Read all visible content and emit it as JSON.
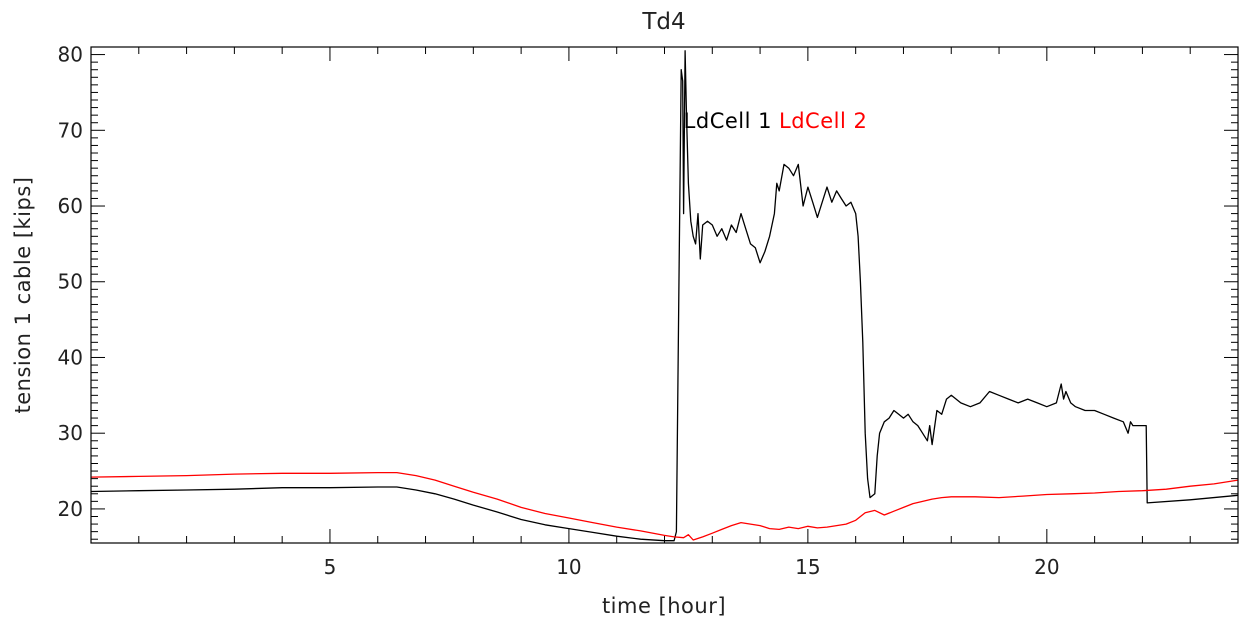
{
  "chart_data": {
    "type": "line",
    "title": "Td4",
    "xlabel": "time [hour]",
    "ylabel": "tension 1 cable [kips]",
    "xlim": [
      0,
      24
    ],
    "ylim": [
      15.5,
      81
    ],
    "xticks": [
      5,
      10,
      15,
      20
    ],
    "yticks": [
      20,
      30,
      40,
      50,
      60,
      70,
      80
    ],
    "grid": false,
    "legend_position": "top-center",
    "series": [
      {
        "name": "LdCell 1",
        "color": "#000000",
        "points": [
          [
            0.0,
            22.3
          ],
          [
            1.0,
            22.4
          ],
          [
            2.0,
            22.5
          ],
          [
            3.0,
            22.6
          ],
          [
            4.0,
            22.8
          ],
          [
            5.0,
            22.8
          ],
          [
            6.0,
            22.9
          ],
          [
            6.4,
            22.9
          ],
          [
            6.8,
            22.5
          ],
          [
            7.2,
            22.0
          ],
          [
            7.6,
            21.3
          ],
          [
            8.0,
            20.5
          ],
          [
            8.5,
            19.6
          ],
          [
            9.0,
            18.6
          ],
          [
            9.5,
            17.9
          ],
          [
            10.0,
            17.4
          ],
          [
            10.5,
            16.9
          ],
          [
            11.0,
            16.4
          ],
          [
            11.5,
            16.0
          ],
          [
            12.0,
            15.8
          ],
          [
            12.2,
            15.8
          ],
          [
            12.25,
            17.0
          ],
          [
            12.3,
            48.0
          ],
          [
            12.35,
            78.0
          ],
          [
            12.38,
            76.5
          ],
          [
            12.4,
            59.0
          ],
          [
            12.43,
            80.5
          ],
          [
            12.46,
            72.0
          ],
          [
            12.5,
            63.0
          ],
          [
            12.55,
            58.0
          ],
          [
            12.6,
            56.0
          ],
          [
            12.65,
            55.0
          ],
          [
            12.7,
            59.0
          ],
          [
            12.75,
            53.0
          ],
          [
            12.8,
            57.5
          ],
          [
            12.9,
            58.0
          ],
          [
            13.0,
            57.5
          ],
          [
            13.1,
            56.0
          ],
          [
            13.2,
            57.0
          ],
          [
            13.3,
            55.5
          ],
          [
            13.4,
            57.5
          ],
          [
            13.5,
            56.5
          ],
          [
            13.6,
            59.0
          ],
          [
            13.7,
            57.0
          ],
          [
            13.8,
            55.0
          ],
          [
            13.9,
            54.5
          ],
          [
            14.0,
            52.5
          ],
          [
            14.1,
            54.0
          ],
          [
            14.2,
            56.0
          ],
          [
            14.3,
            59.0
          ],
          [
            14.35,
            63.0
          ],
          [
            14.4,
            62.0
          ],
          [
            14.5,
            65.5
          ],
          [
            14.6,
            65.0
          ],
          [
            14.7,
            64.0
          ],
          [
            14.8,
            65.5
          ],
          [
            14.9,
            60.0
          ],
          [
            15.0,
            62.5
          ],
          [
            15.1,
            60.5
          ],
          [
            15.2,
            58.5
          ],
          [
            15.3,
            60.5
          ],
          [
            15.4,
            62.5
          ],
          [
            15.5,
            60.5
          ],
          [
            15.6,
            62.0
          ],
          [
            15.7,
            61.0
          ],
          [
            15.8,
            60.0
          ],
          [
            15.9,
            60.5
          ],
          [
            16.0,
            59.0
          ],
          [
            16.05,
            56.0
          ],
          [
            16.1,
            50.0
          ],
          [
            16.15,
            42.0
          ],
          [
            16.2,
            30.0
          ],
          [
            16.25,
            24.0
          ],
          [
            16.3,
            21.5
          ],
          [
            16.4,
            22.0
          ],
          [
            16.45,
            27.0
          ],
          [
            16.5,
            30.0
          ],
          [
            16.6,
            31.5
          ],
          [
            16.7,
            32.0
          ],
          [
            16.8,
            33.0
          ],
          [
            16.9,
            32.5
          ],
          [
            17.0,
            32.0
          ],
          [
            17.1,
            32.5
          ],
          [
            17.2,
            31.5
          ],
          [
            17.3,
            31.0
          ],
          [
            17.4,
            30.0
          ],
          [
            17.5,
            29.0
          ],
          [
            17.55,
            31.0
          ],
          [
            17.6,
            28.5
          ],
          [
            17.7,
            33.0
          ],
          [
            17.8,
            32.5
          ],
          [
            17.9,
            34.5
          ],
          [
            18.0,
            35.0
          ],
          [
            18.2,
            34.0
          ],
          [
            18.4,
            33.5
          ],
          [
            18.6,
            34.0
          ],
          [
            18.8,
            35.5
          ],
          [
            19.0,
            35.0
          ],
          [
            19.2,
            34.5
          ],
          [
            19.4,
            34.0
          ],
          [
            19.6,
            34.5
          ],
          [
            19.8,
            34.0
          ],
          [
            20.0,
            33.5
          ],
          [
            20.2,
            34.0
          ],
          [
            20.3,
            36.5
          ],
          [
            20.35,
            34.5
          ],
          [
            20.4,
            35.5
          ],
          [
            20.5,
            34.0
          ],
          [
            20.6,
            33.5
          ],
          [
            20.8,
            33.0
          ],
          [
            21.0,
            33.0
          ],
          [
            21.2,
            32.5
          ],
          [
            21.4,
            32.0
          ],
          [
            21.6,
            31.5
          ],
          [
            21.7,
            30.0
          ],
          [
            21.75,
            31.5
          ],
          [
            21.8,
            31.0
          ],
          [
            22.0,
            31.0
          ],
          [
            22.08,
            31.0
          ],
          [
            22.1,
            20.8
          ],
          [
            23.0,
            21.2
          ],
          [
            24.0,
            21.8
          ]
        ]
      },
      {
        "name": "LdCell 2",
        "color": "#ff0000",
        "points": [
          [
            0.0,
            24.2
          ],
          [
            1.0,
            24.3
          ],
          [
            2.0,
            24.4
          ],
          [
            3.0,
            24.6
          ],
          [
            4.0,
            24.7
          ],
          [
            5.0,
            24.7
          ],
          [
            6.0,
            24.8
          ],
          [
            6.4,
            24.8
          ],
          [
            6.8,
            24.4
          ],
          [
            7.2,
            23.8
          ],
          [
            7.6,
            23.0
          ],
          [
            8.0,
            22.2
          ],
          [
            8.5,
            21.3
          ],
          [
            9.0,
            20.2
          ],
          [
            9.5,
            19.4
          ],
          [
            10.0,
            18.8
          ],
          [
            10.5,
            18.2
          ],
          [
            11.0,
            17.6
          ],
          [
            11.5,
            17.1
          ],
          [
            12.0,
            16.5
          ],
          [
            12.2,
            16.3
          ],
          [
            12.4,
            16.2
          ],
          [
            12.5,
            16.6
          ],
          [
            12.6,
            15.9
          ],
          [
            12.8,
            16.3
          ],
          [
            13.0,
            16.8
          ],
          [
            13.2,
            17.3
          ],
          [
            13.4,
            17.8
          ],
          [
            13.6,
            18.2
          ],
          [
            13.8,
            18.0
          ],
          [
            14.0,
            17.8
          ],
          [
            14.2,
            17.4
          ],
          [
            14.4,
            17.3
          ],
          [
            14.6,
            17.6
          ],
          [
            14.8,
            17.4
          ],
          [
            15.0,
            17.7
          ],
          [
            15.2,
            17.5
          ],
          [
            15.4,
            17.6
          ],
          [
            15.6,
            17.8
          ],
          [
            15.8,
            18.0
          ],
          [
            16.0,
            18.5
          ],
          [
            16.2,
            19.5
          ],
          [
            16.4,
            19.8
          ],
          [
            16.6,
            19.2
          ],
          [
            16.8,
            19.7
          ],
          [
            17.0,
            20.2
          ],
          [
            17.2,
            20.7
          ],
          [
            17.4,
            21.0
          ],
          [
            17.6,
            21.3
          ],
          [
            17.8,
            21.5
          ],
          [
            18.0,
            21.6
          ],
          [
            18.5,
            21.6
          ],
          [
            19.0,
            21.5
          ],
          [
            19.5,
            21.7
          ],
          [
            20.0,
            21.9
          ],
          [
            20.5,
            22.0
          ],
          [
            21.0,
            22.1
          ],
          [
            21.5,
            22.3
          ],
          [
            22.0,
            22.4
          ],
          [
            22.5,
            22.6
          ],
          [
            23.0,
            23.0
          ],
          [
            23.5,
            23.3
          ],
          [
            24.0,
            23.8
          ]
        ]
      }
    ]
  }
}
